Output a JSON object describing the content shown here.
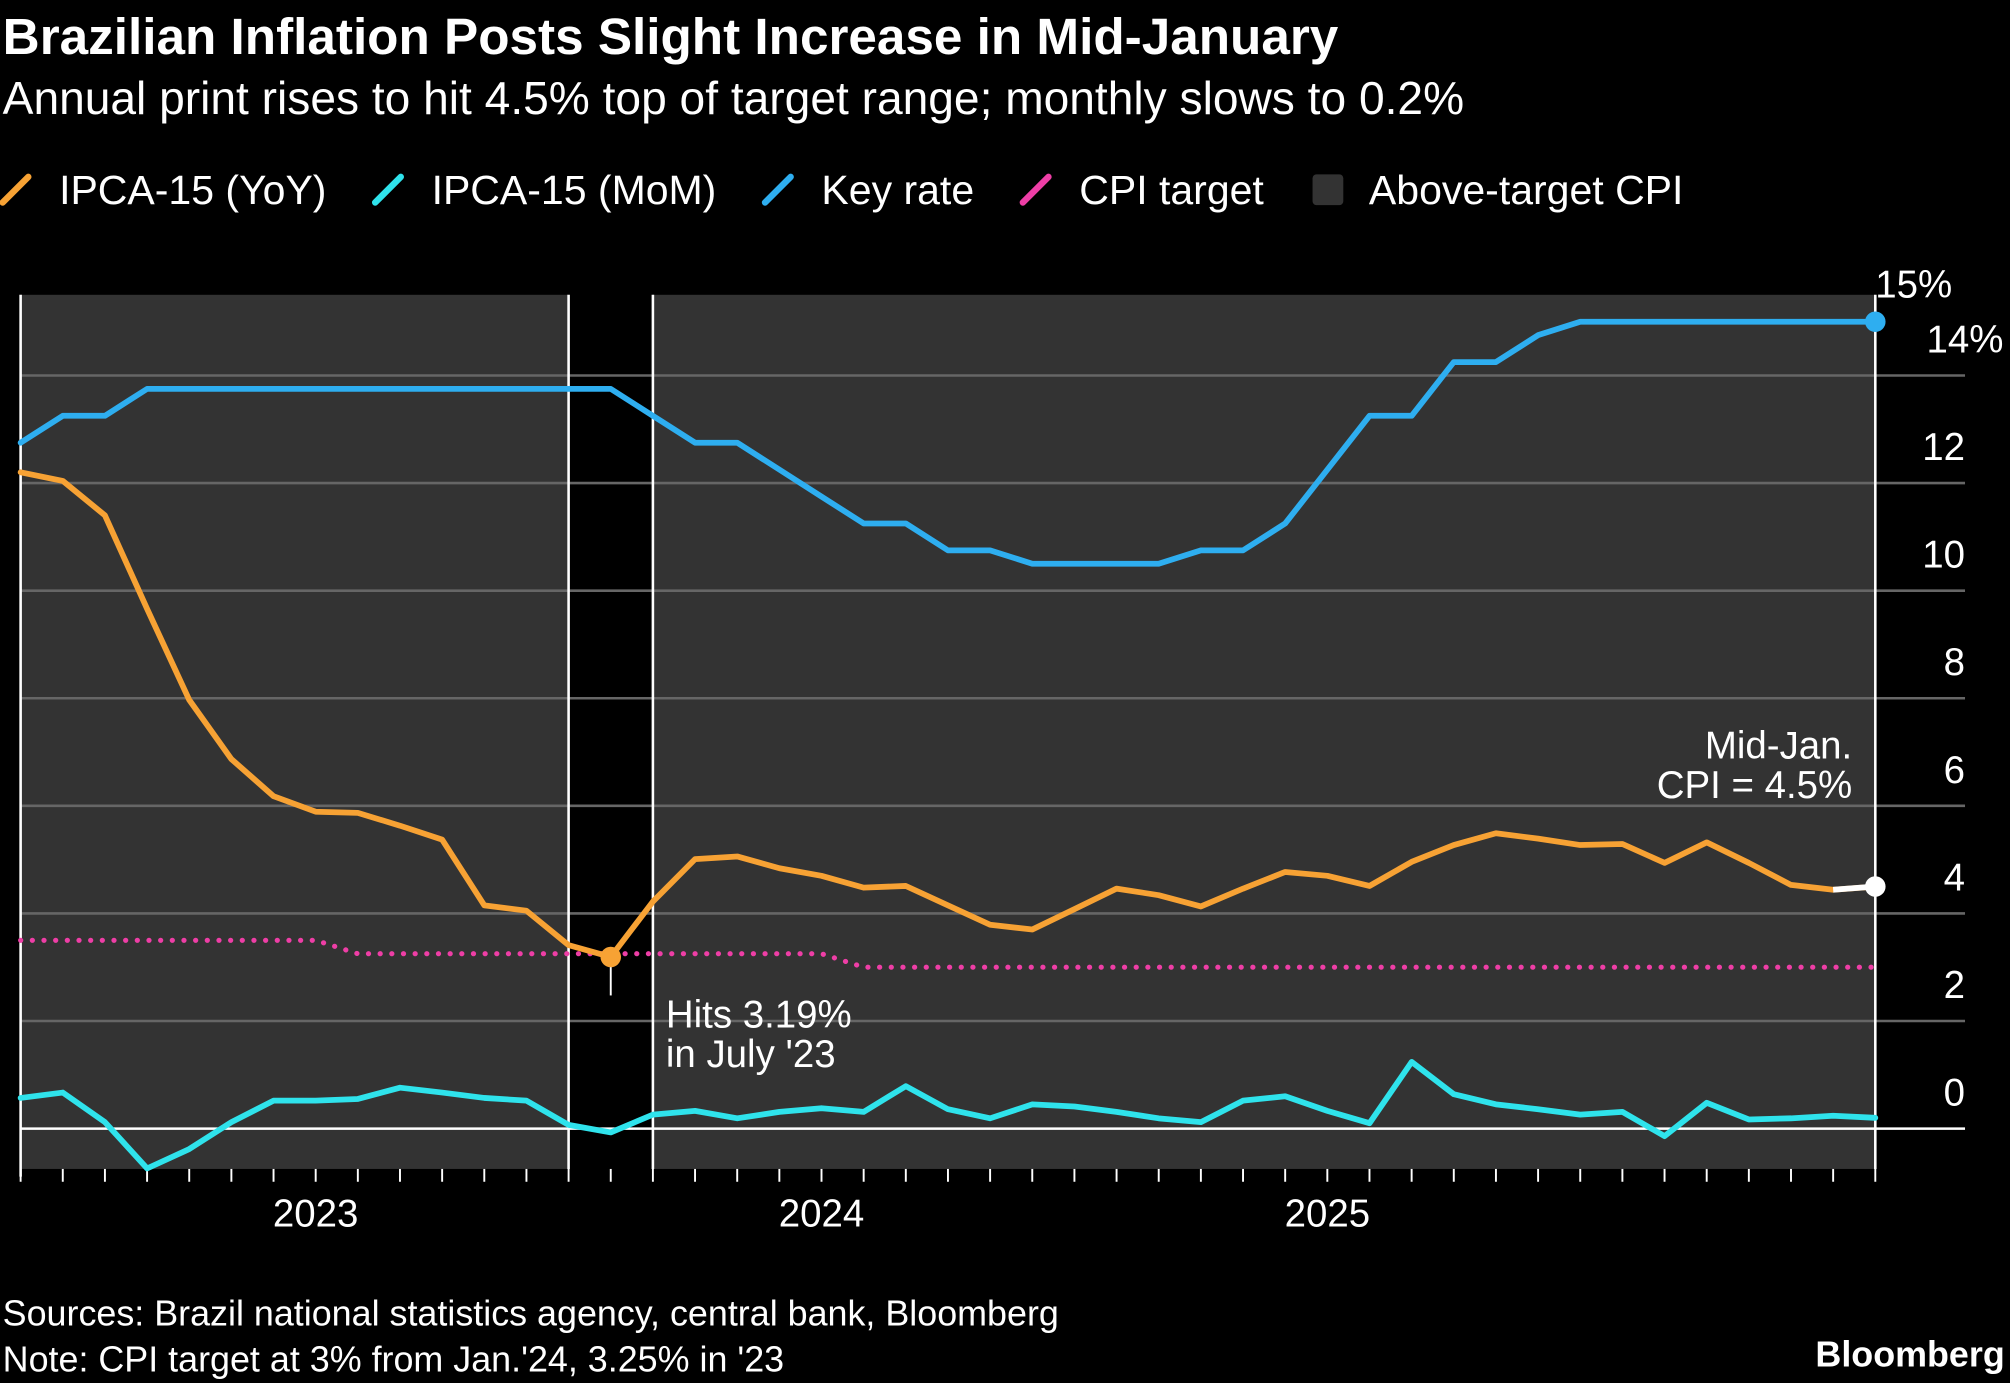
{
  "chart_data": {
    "type": "line",
    "title": "Brazilian Inflation Posts Slight Increase in Mid-January",
    "subtitle": "Annual print rises to hit 4.5% top of target range; monthly slows to 0.2%",
    "categories": [
      null,
      null,
      null,
      null,
      null,
      null,
      null,
      "2023",
      null,
      null,
      null,
      null,
      null,
      null,
      null,
      null,
      null,
      null,
      null,
      "2024",
      null,
      null,
      null,
      null,
      null,
      null,
      null,
      null,
      null,
      null,
      null,
      "2025",
      null,
      null,
      null,
      null,
      null,
      null,
      null,
      null,
      null,
      null,
      null,
      null,
      null
    ],
    "series": [
      {
        "name": "IPCA-15 (YoY)",
        "color": "#f7a234",
        "style": "solid",
        "values": [
          12.2,
          12.04,
          11.4,
          9.66,
          7.97,
          6.87,
          6.18,
          5.89,
          5.87,
          5.63,
          5.37,
          4.15,
          4.05,
          3.41,
          3.19,
          4.22,
          5.01,
          5.06,
          4.84,
          4.7,
          4.48,
          4.51,
          4.15,
          3.79,
          3.7,
          4.08,
          4.46,
          4.34,
          4.13,
          4.46,
          4.77,
          4.7,
          4.51,
          4.96,
          5.27,
          5.49,
          5.39,
          5.27,
          5.29,
          4.94,
          5.32,
          4.94,
          4.53,
          4.44,
          4.5
        ]
      },
      {
        "name": "IPCA-15 (MoM)",
        "color": "#2fe3ec",
        "style": "solid",
        "values": [
          0.57,
          0.67,
          0.12,
          -0.74,
          -0.38,
          0.12,
          0.52,
          0.52,
          0.55,
          0.76,
          0.67,
          0.57,
          0.52,
          0.07,
          -0.07,
          0.26,
          0.33,
          0.19,
          0.31,
          0.38,
          0.31,
          0.79,
          0.36,
          0.19,
          0.45,
          0.41,
          0.31,
          0.19,
          0.12,
          0.52,
          0.6,
          0.33,
          0.1,
          1.24,
          0.64,
          0.45,
          0.36,
          0.26,
          0.31,
          -0.14,
          0.48,
          0.17,
          0.19,
          0.24,
          0.2
        ]
      },
      {
        "name": "Key rate",
        "color": "#2eaef0",
        "style": "solid",
        "values": [
          12.75,
          13.25,
          13.25,
          13.75,
          13.75,
          13.75,
          13.75,
          13.75,
          13.75,
          13.75,
          13.75,
          13.75,
          13.75,
          13.75,
          13.75,
          13.25,
          12.75,
          12.75,
          12.25,
          11.75,
          11.25,
          11.25,
          10.75,
          10.75,
          10.5,
          10.5,
          10.5,
          10.5,
          10.75,
          10.75,
          11.25,
          12.25,
          13.25,
          13.25,
          14.25,
          14.25,
          14.75,
          15,
          15,
          15,
          15,
          15,
          15,
          15,
          15
        ],
        "value_labels": [
          null,
          null,
          null,
          null,
          null,
          null,
          null,
          null,
          null,
          null,
          null,
          null,
          null,
          null,
          null,
          null,
          null,
          null,
          null,
          null,
          null,
          null,
          null,
          null,
          null,
          null,
          null,
          null,
          null,
          null,
          null,
          null,
          null,
          null,
          null,
          null,
          null,
          null,
          null,
          null,
          null,
          null,
          null,
          null,
          "15%"
        ]
      },
      {
        "name": "CPI target",
        "color": "#ee3ea6",
        "style": "dotted",
        "values": [
          3.5,
          3.5,
          3.5,
          3.5,
          3.5,
          3.5,
          3.5,
          3.5,
          3.25,
          3.25,
          3.25,
          3.25,
          3.25,
          3.25,
          3.25,
          3.25,
          3.25,
          3.25,
          3.25,
          3.25,
          3,
          3,
          3,
          3,
          3,
          3,
          3,
          3,
          3,
          3,
          3,
          3,
          3,
          3,
          3,
          3,
          3,
          3,
          3,
          3,
          3,
          3,
          3,
          3,
          3
        ]
      }
    ],
    "shading": {
      "name": "Above-target CPI",
      "color": "#333333"
    },
    "ylim": [
      -0.75,
      15.5
    ],
    "yticks": [
      0,
      2,
      4,
      6,
      8,
      10,
      12,
      {
        "value": 14,
        "label": "14%"
      }
    ],
    "grid": true,
    "legend": "top-left",
    "annotations": [
      {
        "lines": [
          "Hits 3.19%",
          "in July '23"
        ]
      },
      {
        "lines": [
          "Mid-Jan.",
          "CPI = 4.5%"
        ]
      }
    ],
    "source": "Sources: Brazil national statistics agency, central bank, Bloomberg",
    "note": "Note: CPI target at 3% from Jan.'24, 3.25% in '23",
    "brand": "Bloomberg"
  }
}
